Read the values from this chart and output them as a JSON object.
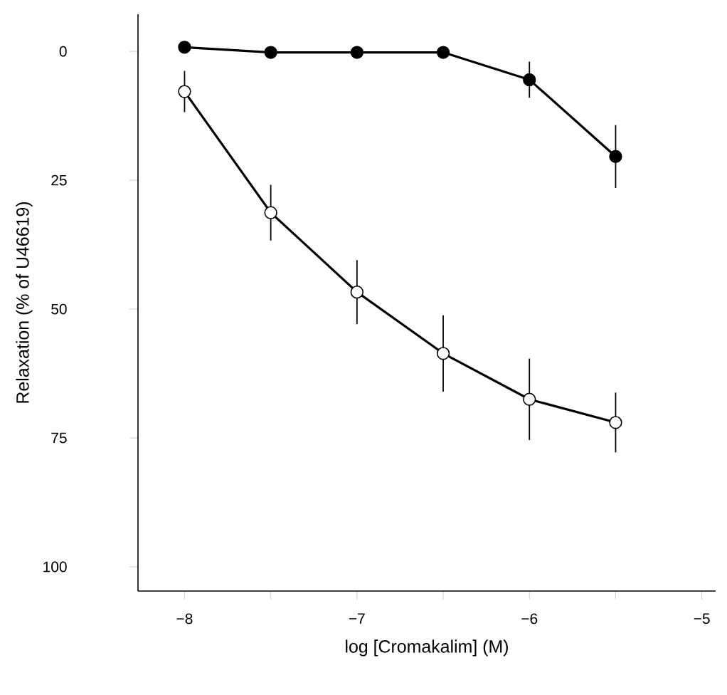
{
  "chart_data": {
    "type": "line",
    "xlabel": "log [Cromakalim] (M)",
    "ylabel": "Relaxation (% of U46619)",
    "x": [
      -8,
      -7.5,
      -7,
      -6.5,
      -6,
      -5.5
    ],
    "series": [
      {
        "color": "#000000",
        "values": [
          -0.8,
          0.2,
          0.2,
          0.2,
          5.5,
          20.4
        ],
        "errors": [
          null,
          null,
          null,
          null,
          3.5,
          6.1
        ]
      },
      {
        "color": "#ffffff",
        "values": [
          7.8,
          31.3,
          46.7,
          58.6,
          67.5,
          72
        ],
        "errors": [
          4,
          5.4,
          6.2,
          7.4,
          7.9,
          5.8
        ]
      }
    ],
    "xlim": [
      -8.27,
      -4.92
    ],
    "ylim": [
      104.7,
      -7.2
    ],
    "xticks": [
      {
        "value": -8,
        "label": "−8"
      },
      {
        "value": -7.5,
        "label": null
      },
      {
        "value": -7,
        "label": "−7"
      },
      {
        "value": -6.5,
        "label": null
      },
      {
        "value": -6,
        "label": "−6"
      },
      {
        "value": -5.5,
        "label": null
      },
      {
        "value": -5,
        "label": "−5"
      }
    ],
    "yticks": [
      0,
      25,
      50,
      75,
      100
    ],
    "marker": "circle",
    "line_style": "solid",
    "grid": false
  }
}
